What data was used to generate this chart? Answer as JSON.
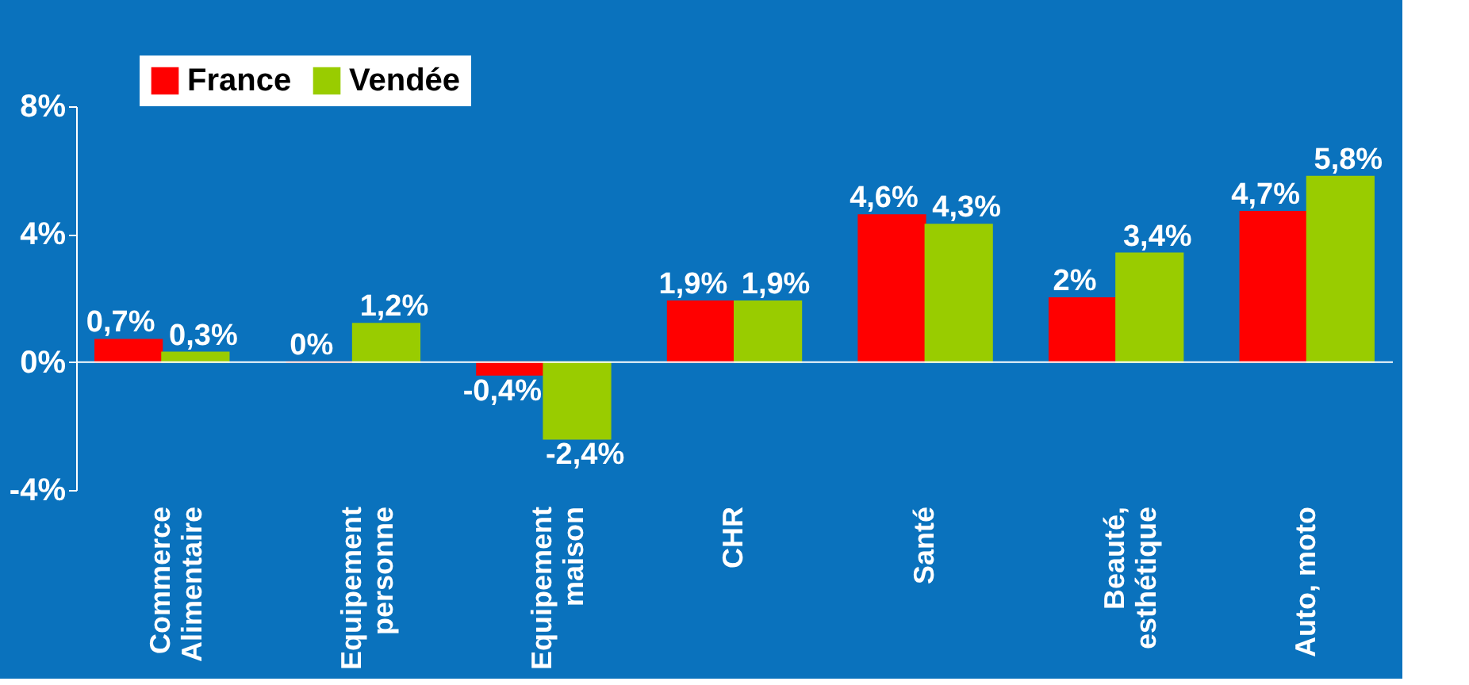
{
  "chart_data": {
    "type": "bar",
    "categories": [
      "Commerce\nAlimentaire",
      "Equipement\npersonne",
      "Equipement\nmaison",
      "CHR",
      "Santé",
      "Beauté,\nesthétique",
      "Auto, moto"
    ],
    "series": [
      {
        "name": "France",
        "color": "#ff0000",
        "values": [
          0.7,
          0,
          -0.4,
          1.9,
          4.6,
          2,
          4.7
        ],
        "value_labels": [
          "0,7%",
          "0%",
          "-0,4%",
          "1,9%",
          "4,6%",
          "2%",
          "4,7%"
        ]
      },
      {
        "name": "Vendée",
        "color": "#99cc00",
        "values": [
          0.3,
          1.2,
          -2.4,
          1.9,
          4.3,
          3.4,
          5.8
        ],
        "value_labels": [
          "0,3%",
          "1,2%",
          "-2,4%",
          "1,9%",
          "4,3%",
          "3,4%",
          "5,8%"
        ]
      }
    ],
    "ylim": [
      -4,
      8
    ],
    "yticks": [
      {
        "value": -4,
        "label": "-4%"
      },
      {
        "value": 0,
        "label": "0%"
      },
      {
        "value": 4,
        "label": "4%"
      },
      {
        "value": 8,
        "label": "8%"
      }
    ],
    "grid": false,
    "ref_lines": [
      {
        "axis": "y",
        "value": 0,
        "color": "#ffffff"
      }
    ],
    "legend": "top left"
  }
}
